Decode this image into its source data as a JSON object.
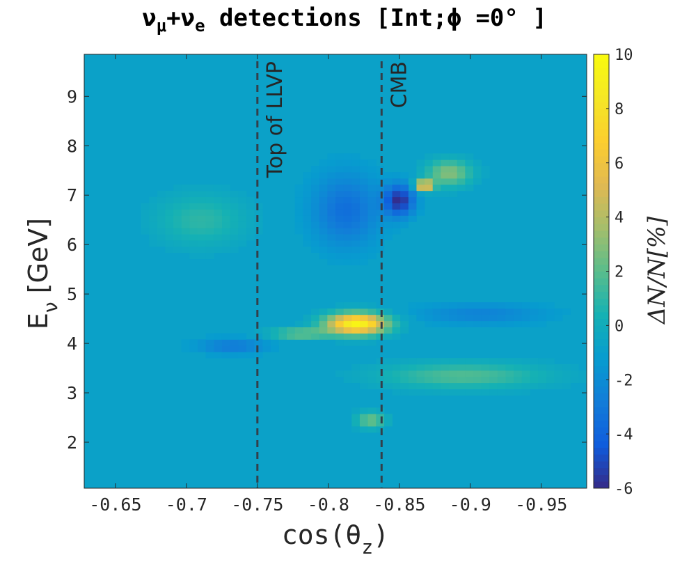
{
  "chart_data": {
    "type": "heatmap",
    "title_parts": [
      "ν",
      "μ",
      "+ν",
      "e",
      " detections [Int;ϕ =0° ]"
    ],
    "xlabel_parts": [
      "cos(θ",
      "z",
      ")"
    ],
    "ylabel_parts": [
      "E",
      "ν",
      " [GeV]"
    ],
    "colorbar_label": "ΔN/N[%]",
    "x_ticks": [
      "-0.65",
      "-0.7",
      "-0.75",
      "-0.8",
      "-0.85",
      "-0.9",
      "-0.95"
    ],
    "x_tick_values": [
      -0.65,
      -0.7,
      -0.75,
      -0.8,
      -0.85,
      -0.9,
      -0.95
    ],
    "xlim": [
      -0.628,
      -0.982
    ],
    "y_ticks": [
      "2",
      "3",
      "4",
      "5",
      "6",
      "7",
      "8",
      "9"
    ],
    "y_tick_values": [
      2,
      3,
      4,
      5,
      6,
      7,
      8,
      9
    ],
    "ylim": [
      1.07,
      9.85
    ],
    "colorbar_ticks": [
      "10",
      "8",
      "6",
      "4",
      "2",
      "0",
      "-2",
      "-4",
      "-6"
    ],
    "colorbar_tick_values": [
      10,
      8,
      6,
      4,
      2,
      0,
      -2,
      -4,
      -6
    ],
    "clim": [
      -6,
      10
    ],
    "background_value": -0.8,
    "colormap": "parula",
    "reference_lines": [
      {
        "x": -0.75,
        "label": "Top of LLVP"
      },
      {
        "x": -0.8375,
        "label": "CMB"
      }
    ],
    "features": [
      {
        "name": "blue blob",
        "x": [
          -0.79,
          -0.835
        ],
        "y": [
          6.0,
          7.4
        ],
        "value": -3.5
      },
      {
        "name": "dip",
        "x": [
          -0.84,
          -0.86
        ],
        "y": [
          6.6,
          7.2
        ],
        "value": -5.8
      },
      {
        "name": "peak upper",
        "x": [
          -0.865,
          -0.87
        ],
        "y": [
          7.1,
          7.3
        ],
        "value": 7.0
      },
      {
        "name": "green ridge",
        "x": [
          -0.87,
          -0.9
        ],
        "y": [
          7.2,
          7.7
        ],
        "value": 3.0
      },
      {
        "name": "green halo",
        "x": [
          -0.68,
          -0.74
        ],
        "y": [
          6.0,
          7.0
        ],
        "value": 1.0
      },
      {
        "name": "band 4.1 left",
        "x": [
          -0.71,
          -0.755
        ],
        "y": [
          3.8,
          4.1
        ],
        "value": -3.0
      },
      {
        "name": "band 4.2 mid",
        "x": [
          -0.76,
          -0.8
        ],
        "y": [
          4.1,
          4.3
        ],
        "value": 2.5
      },
      {
        "name": "peak lower",
        "x": [
          -0.8,
          -0.84
        ],
        "y": [
          4.2,
          4.6
        ],
        "value": 9.5
      },
      {
        "name": "band 4.7 right",
        "x": [
          -0.865,
          -0.95
        ],
        "y": [
          4.4,
          4.8
        ],
        "value": -2.5
      },
      {
        "name": "band 3.3",
        "x": [
          -0.84,
          -0.95
        ],
        "y": [
          3.1,
          3.6
        ],
        "value": 1.8
      },
      {
        "name": "spot 2.4",
        "x": [
          -0.82,
          -0.84
        ],
        "y": [
          2.3,
          2.6
        ],
        "value": 2.5
      }
    ]
  }
}
